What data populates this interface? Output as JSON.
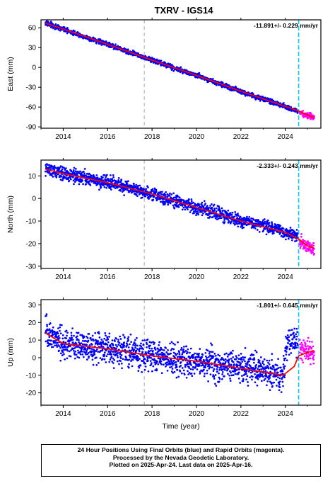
{
  "title": "TXRV - IGS14",
  "xlabel": "Time (year)",
  "caption": [
    "24 Hour Positions Using Final Orbits (blue) and Rapid Orbits (magenta).",
    "Processed by the Nevada Geodetic Laboratory.",
    "Plotted on 2025-Apr-24. Last data on 2025-Apr-16."
  ],
  "colors": {
    "final_orbits": "#0000ff",
    "rapid_orbits": "#ff00ff",
    "model_fit": "#ff0000",
    "equipment_change_line": "#aaaaaa",
    "latest_line": "#00ccff"
  },
  "chart_data": [
    {
      "type": "scatter",
      "ylabel": "East (mm)",
      "annotation": "-11.891+/- 0.229 mm/yr",
      "xlim": [
        2013.0,
        2025.6
      ],
      "ylim": [
        -92,
        72
      ],
      "x_ticks": [
        "2014",
        "2016",
        "2018",
        "2020",
        "2022",
        "2024"
      ],
      "y_ticks": [
        60,
        30,
        0,
        -30,
        -60,
        -90
      ],
      "grid": false,
      "vlines": [
        {
          "x": 2017.65,
          "style": "dashed-gray"
        },
        {
          "x": 2024.6,
          "style": "dashed-cyan"
        }
      ],
      "series": [
        {
          "points": [
            [
              2013.2,
              67
            ],
            [
              2014.0,
              58
            ],
            [
              2015.0,
              46
            ],
            [
              2016.0,
              35
            ],
            [
              2017.0,
              23
            ],
            [
              2018.0,
              11
            ],
            [
              2019.0,
              -1
            ],
            [
              2020.0,
              -12
            ],
            [
              2021.0,
              -24
            ],
            [
              2022.0,
              -36
            ],
            [
              2023.0,
              -48
            ],
            [
              2024.0,
              -59
            ],
            [
              2024.55,
              -67
            ]
          ],
          "noise": 2.5
        },
        {
          "points": [
            [
              2024.65,
              -68
            ],
            [
              2025.0,
              -73
            ],
            [
              2025.3,
              -76
            ]
          ],
          "noise": 3
        }
      ],
      "fit": [
        [
          2013.2,
          67
        ],
        [
          2014.0,
          58
        ],
        [
          2016.0,
          35
        ],
        [
          2018.0,
          11
        ],
        [
          2020.0,
          -12
        ],
        [
          2022.0,
          -36
        ],
        [
          2024.0,
          -59
        ],
        [
          2024.6,
          -66
        ],
        [
          2025.0,
          -72
        ],
        [
          2025.3,
          -76
        ]
      ]
    },
    {
      "type": "scatter",
      "ylabel": "North (mm)",
      "annotation": "-2.333+/- 0.243 mm/yr",
      "xlim": [
        2013.0,
        2025.6
      ],
      "ylim": [
        -31,
        17
      ],
      "x_ticks": [
        "2014",
        "2016",
        "2018",
        "2020",
        "2022",
        "2024"
      ],
      "y_ticks": [
        10,
        0,
        -10,
        -20,
        -30
      ],
      "grid": false,
      "vlines": [
        {
          "x": 2017.65,
          "style": "dashed-gray"
        },
        {
          "x": 2024.6,
          "style": "dashed-cyan"
        }
      ],
      "series": [
        {
          "points": [
            [
              2013.2,
              13
            ],
            [
              2014.0,
              11
            ],
            [
              2015.0,
              9
            ],
            [
              2016.0,
              7
            ],
            [
              2017.0,
              5
            ],
            [
              2018.0,
              2
            ],
            [
              2019.0,
              -1
            ],
            [
              2020.0,
              -4
            ],
            [
              2021.0,
              -7
            ],
            [
              2022.0,
              -10
            ],
            [
              2023.0,
              -12
            ],
            [
              2024.0,
              -15
            ],
            [
              2024.55,
              -17
            ]
          ],
          "noise": 2
        },
        {
          "points": [
            [
              2024.65,
              -19
            ],
            [
              2025.0,
              -21
            ],
            [
              2025.3,
              -23
            ]
          ],
          "noise": 2
        }
      ],
      "fit": [
        [
          2013.2,
          13
        ],
        [
          2014.0,
          11
        ],
        [
          2016.0,
          7
        ],
        [
          2018.0,
          2
        ],
        [
          2020.0,
          -4
        ],
        [
          2022.0,
          -10
        ],
        [
          2024.0,
          -15
        ],
        [
          2024.6,
          -18
        ],
        [
          2025.0,
          -21
        ],
        [
          2025.3,
          -22
        ]
      ]
    },
    {
      "type": "scatter",
      "ylabel": "Up (mm)",
      "annotation": "-1.801+/- 0.645 mm/yr",
      "xlim": [
        2013.0,
        2025.6
      ],
      "ylim": [
        -27,
        33
      ],
      "x_ticks": [
        "2014",
        "2016",
        "2018",
        "2020",
        "2022",
        "2024"
      ],
      "y_ticks": [
        30,
        20,
        10,
        0,
        -10,
        -20
      ],
      "grid": false,
      "vlines": [
        {
          "x": 2017.65,
          "style": "dashed-gray"
        },
        {
          "x": 2024.6,
          "style": "dashed-cyan"
        }
      ],
      "series": [
        {
          "points": [
            [
              2013.2,
              14
            ],
            [
              2014.0,
              8
            ],
            [
              2015.0,
              6
            ],
            [
              2016.0,
              5
            ],
            [
              2017.0,
              3
            ],
            [
              2018.0,
              1
            ],
            [
              2019.0,
              -1
            ],
            [
              2020.0,
              -2
            ],
            [
              2021.0,
              -4
            ],
            [
              2022.0,
              -6
            ],
            [
              2023.0,
              -8
            ],
            [
              2023.9,
              -10
            ],
            [
              2024.1,
              10
            ],
            [
              2024.55,
              9
            ]
          ],
          "noise": 6
        },
        {
          "points": [
            [
              2024.65,
              5
            ],
            [
              2025.0,
              3
            ],
            [
              2025.3,
              2
            ]
          ],
          "noise": 5
        }
      ],
      "fit": [
        [
          2013.2,
          14
        ],
        [
          2014.0,
          8
        ],
        [
          2016.0,
          5
        ],
        [
          2018.0,
          1
        ],
        [
          2020.0,
          -2
        ],
        [
          2022.0,
          -6
        ],
        [
          2023.9,
          -10
        ],
        [
          2024.4,
          -5
        ],
        [
          2024.6,
          1
        ],
        [
          2025.0,
          3
        ],
        [
          2025.3,
          4
        ]
      ]
    }
  ]
}
